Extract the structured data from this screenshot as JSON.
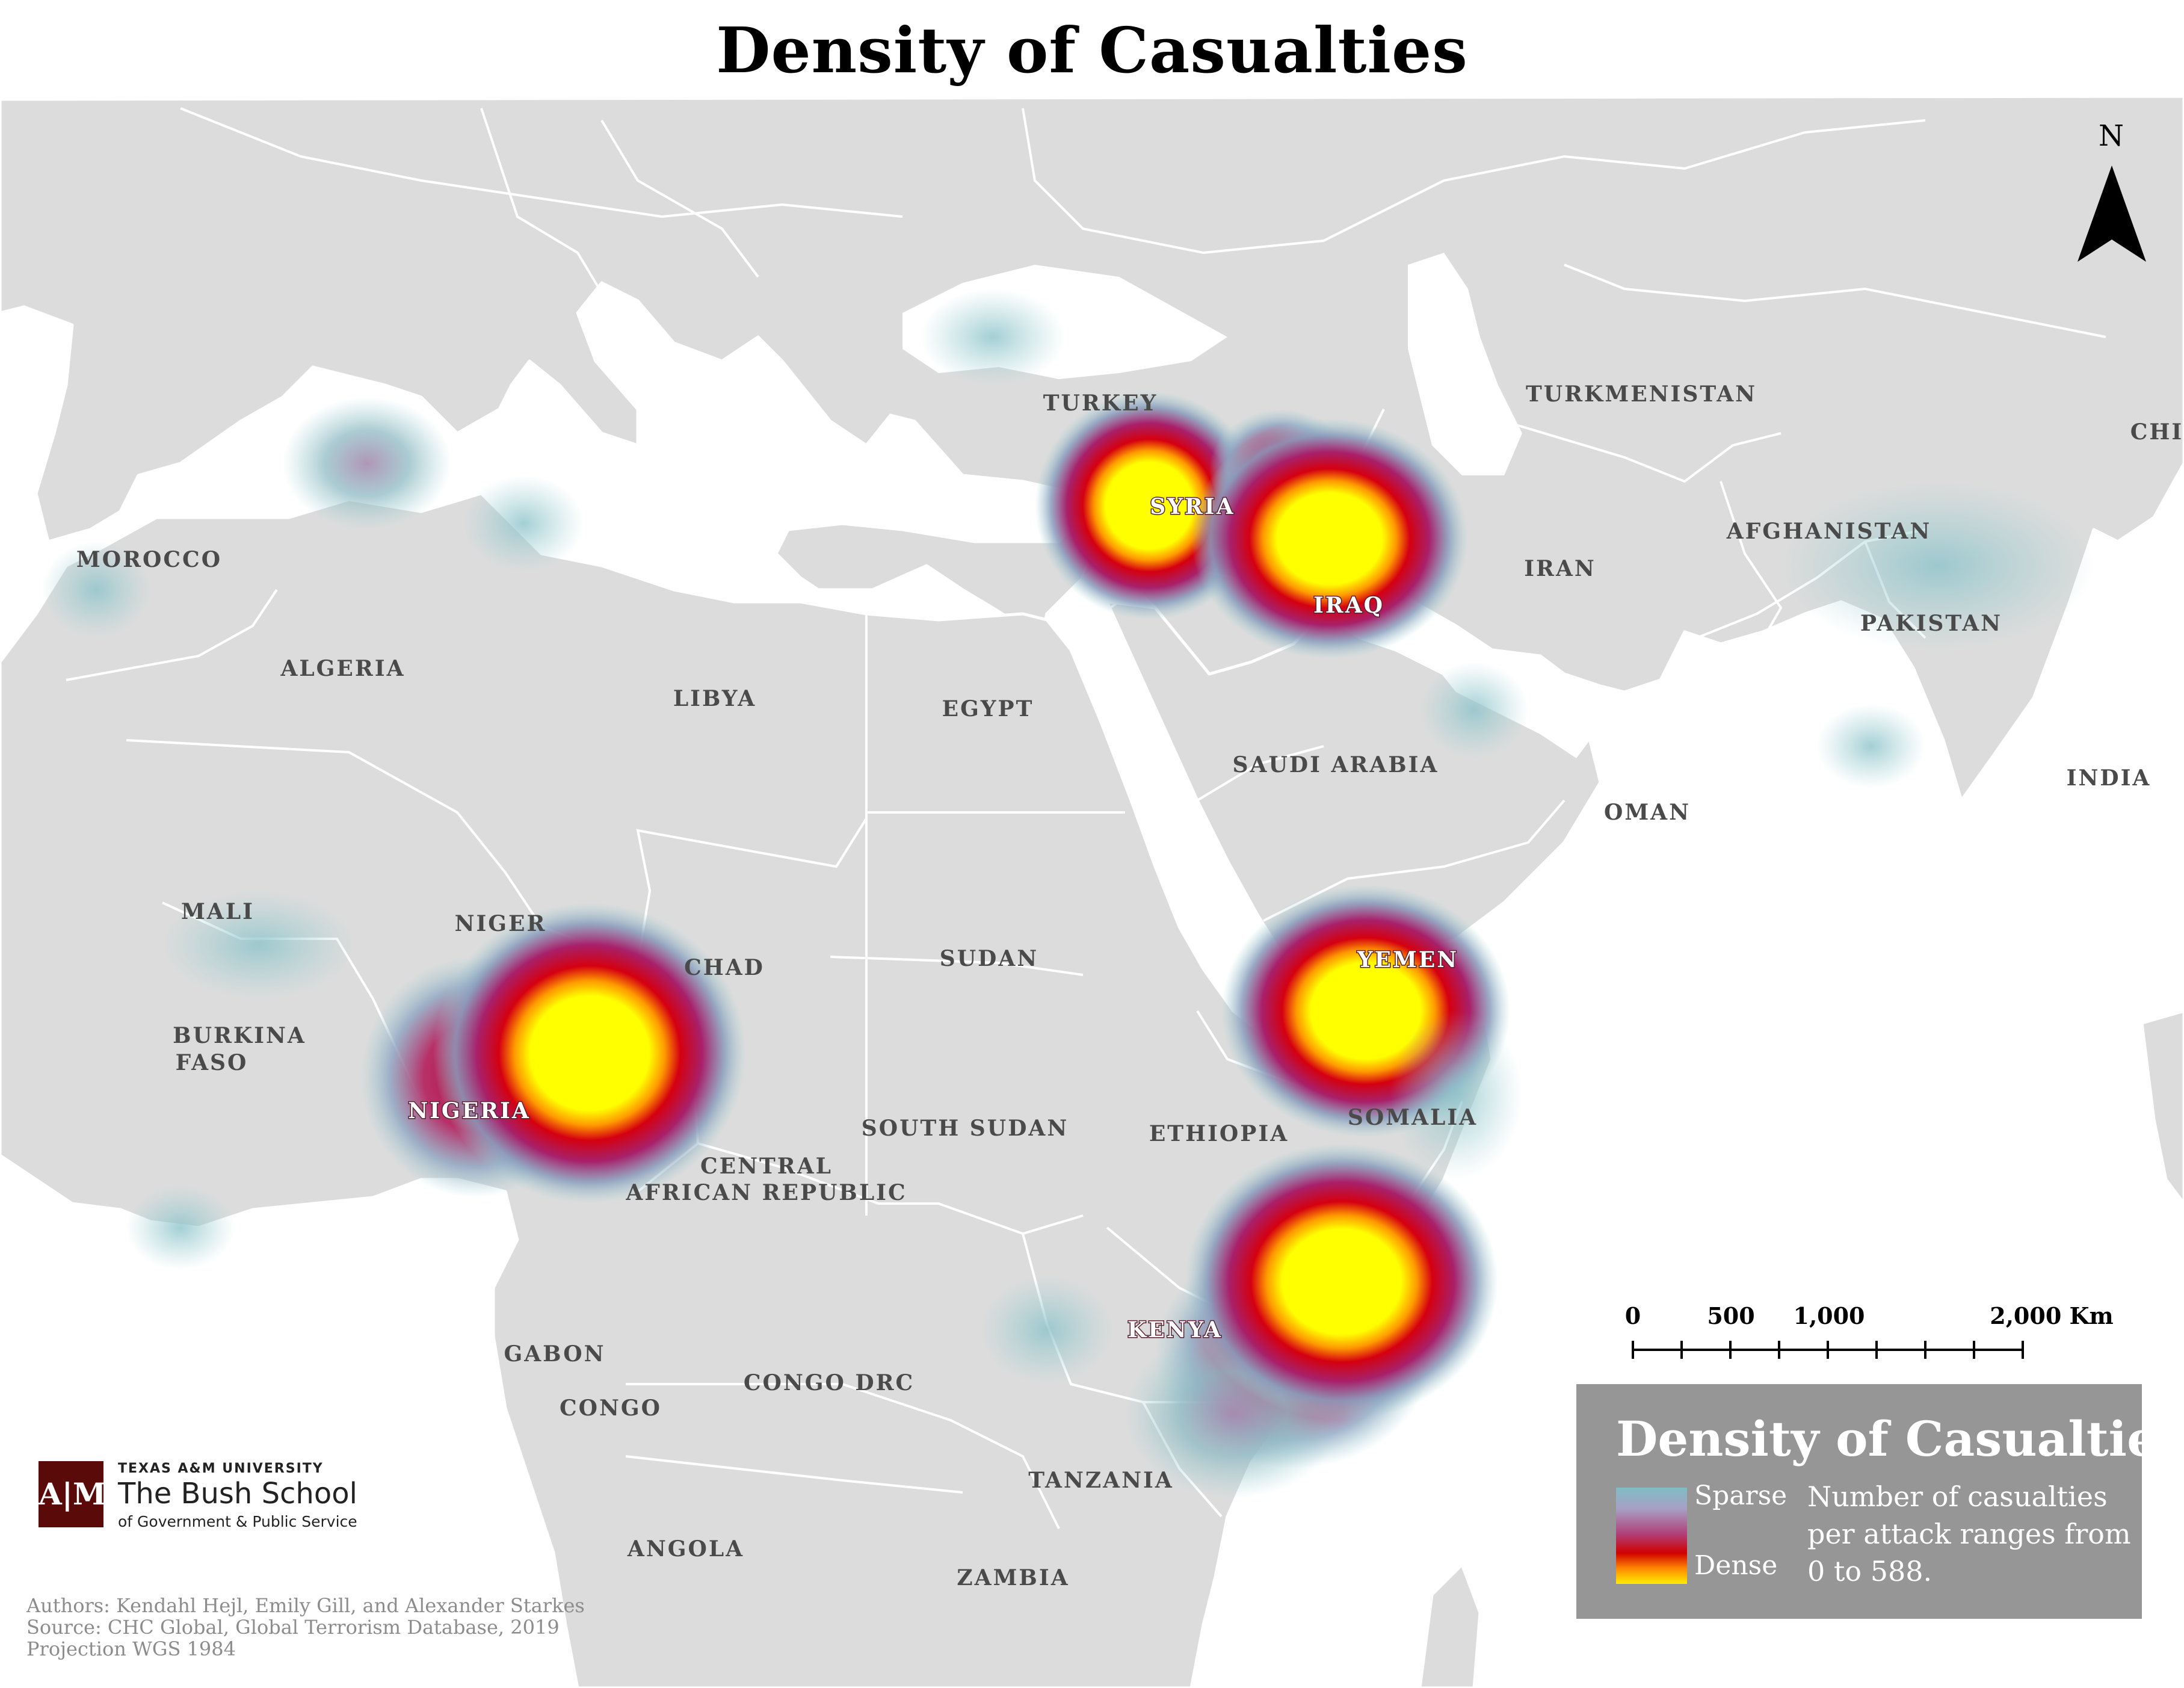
{
  "title": "Density of Casualties",
  "north_label": "N",
  "country_labels": [
    {
      "text": "MOROCCO",
      "halo": false
    },
    {
      "text": "ALGERIA",
      "halo": false
    },
    {
      "text": "LIBYA",
      "halo": false
    },
    {
      "text": "EGYPT",
      "halo": false
    },
    {
      "text": "TURKEY",
      "halo": false
    },
    {
      "text": "SYRIA",
      "halo": true
    },
    {
      "text": "IRAQ",
      "halo": true
    },
    {
      "text": "TURKMENISTAN",
      "halo": false
    },
    {
      "text": "IRAN",
      "halo": false
    },
    {
      "text": "AFGHANISTAN",
      "halo": false
    },
    {
      "text": "PAKISTAN",
      "halo": false
    },
    {
      "text": "CHI",
      "halo": false
    },
    {
      "text": "INDIA",
      "halo": false
    },
    {
      "text": "SAUDI ARABIA",
      "halo": false
    },
    {
      "text": "OMAN",
      "halo": false
    },
    {
      "text": "YEMEN",
      "halo": true
    },
    {
      "text": "MALI",
      "halo": false
    },
    {
      "text": "NIGER",
      "halo": false
    },
    {
      "text": "CHAD",
      "halo": false
    },
    {
      "text": "SUDAN",
      "halo": false
    },
    {
      "text": "BURKINA",
      "halo": false
    },
    {
      "text": "FASO",
      "halo": false
    },
    {
      "text": "NIGERIA",
      "halo": true
    },
    {
      "text": "SOUTH SUDAN",
      "halo": false
    },
    {
      "text": "ETHIOPIA",
      "halo": false
    },
    {
      "text": "SOMALIA",
      "halo": false
    },
    {
      "text": "CENTRAL",
      "halo": false
    },
    {
      "text": "AFRICAN REPUBLIC",
      "halo": false
    },
    {
      "text": "KENYA",
      "halo": true
    },
    {
      "text": "GABON",
      "halo": false
    },
    {
      "text": "CONGO DRC",
      "halo": false
    },
    {
      "text": "CONGO",
      "halo": false
    },
    {
      "text": "TANZANIA",
      "halo": false
    },
    {
      "text": "ANGOLA",
      "halo": false
    },
    {
      "text": "ZAMBIA",
      "halo": false
    }
  ],
  "hotspots": [
    {
      "place": "Northern Nigeria / Lake Chad",
      "intensity": 1.0
    },
    {
      "place": "Southern Somalia",
      "intensity": 1.0
    },
    {
      "place": "Northern Iraq",
      "intensity": 0.95
    },
    {
      "place": "Syria",
      "intensity": 0.85
    },
    {
      "place": "Yemen",
      "intensity": 0.8
    },
    {
      "place": "Northern Algeria",
      "intensity": 0.35
    },
    {
      "place": "Mali",
      "intensity": 0.2
    },
    {
      "place": "Afghanistan / Pakistan",
      "intensity": 0.2
    },
    {
      "place": "Kenya coast",
      "intensity": 0.45
    }
  ],
  "scale_bar": {
    "ticks": [
      "0",
      "500",
      "1,000",
      "2,000 Km"
    ]
  },
  "legend": {
    "title": "Density of Casualties",
    "sparse_label": "Sparse",
    "dense_label": "Dense",
    "description": "Number of casualties per attack ranges from 0 to 588.",
    "ramp_colors": [
      "#7fbdc4",
      "#a7a0c4",
      "#b0407a",
      "#d10000",
      "#ff8800",
      "#ffee00"
    ]
  },
  "logo": {
    "university": "TEXAS A&M UNIVERSITY",
    "school": "The Bush School",
    "subtitle": "of Government & Public Service",
    "mark": "A|M"
  },
  "credits": {
    "authors": "Authors: Kendahl Hejl, Emily Gill, and Alexander Starkes",
    "source": "Source: CHC Global, Global Terrorism Database, 2019",
    "projection": "Projection WGS 1984"
  },
  "colors": {
    "land": "#dcdcdc",
    "water": "#ffffff",
    "border": "#ffffff",
    "legend_bg": "#969696",
    "logo_maroon": "#5b0a0a"
  }
}
